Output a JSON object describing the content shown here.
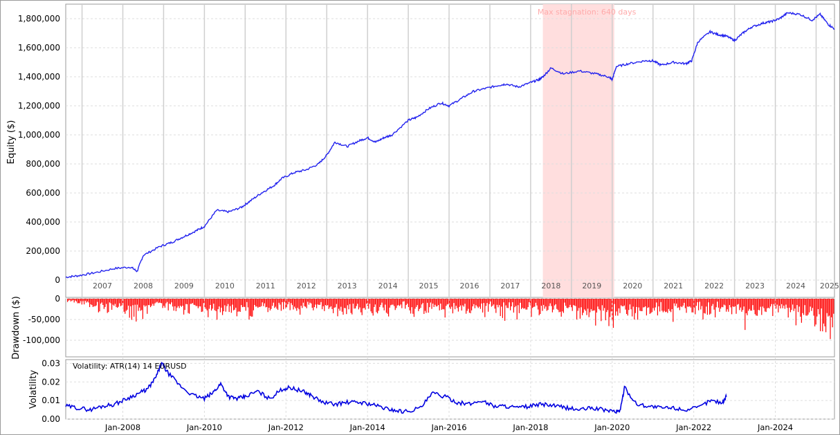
{
  "chart_data": [
    {
      "type": "line",
      "ylabel": "Equity ($)",
      "ylim": [
        0,
        1900000
      ],
      "yticks": [
        0,
        200000,
        400000,
        600000,
        800000,
        1000000,
        1200000,
        1400000,
        1600000,
        1800000
      ],
      "ytick_labels": [
        "0",
        "200,000",
        "400,000",
        "600,000",
        "800,000",
        "1,000,000",
        "1,200,000",
        "1,400,000",
        "1,600,000",
        "1,800,000"
      ],
      "xlim": [
        2006.6,
        2025.45
      ],
      "year_labels": [
        "2007",
        "2008",
        "2009",
        "2010",
        "2011",
        "2012",
        "2013",
        "2014",
        "2015",
        "2016",
        "2017",
        "2018",
        "2019",
        "2020",
        "2021",
        "2022",
        "2023",
        "2024",
        "2025"
      ],
      "grid": true,
      "stagnation": {
        "start": 2018.3,
        "end": 2020.05,
        "label": "Max stagnation: 640 days",
        "color": "#ffdede"
      },
      "series": [
        {
          "color": "#2222ee",
          "x": [
            2006.6,
            2006.9,
            2007.3,
            2007.8,
            2008.2,
            2008.35,
            2008.5,
            2008.9,
            2009.2,
            2009.5,
            2009.8,
            2010.0,
            2010.3,
            2010.6,
            2010.9,
            2011.1,
            2011.4,
            2011.7,
            2011.9,
            2012.2,
            2012.5,
            2012.8,
            2013.0,
            2013.2,
            2013.5,
            2013.8,
            2014.0,
            2014.2,
            2014.4,
            2014.6,
            2015.0,
            2015.2,
            2015.5,
            2015.8,
            2016.0,
            2016.3,
            2016.6,
            2016.9,
            2017.2,
            2017.4,
            2017.7,
            2018.0,
            2018.2,
            2018.3,
            2018.5,
            2018.8,
            2019.2,
            2019.6,
            2019.9,
            2020.0,
            2020.1,
            2020.4,
            2020.8,
            2021.0,
            2021.2,
            2021.5,
            2021.8,
            2021.95,
            2022.1,
            2022.4,
            2022.6,
            2022.8,
            2023.0,
            2023.2,
            2023.4,
            2023.7,
            2023.9,
            2024.1,
            2024.3,
            2024.6,
            2024.9,
            2025.1,
            2025.3,
            2025.45
          ],
          "y": [
            20000,
            30000,
            50000,
            80000,
            90000,
            60000,
            170000,
            230000,
            260000,
            300000,
            340000,
            370000,
            480000,
            470000,
            500000,
            540000,
            600000,
            650000,
            700000,
            740000,
            760000,
            800000,
            860000,
            950000,
            920000,
            960000,
            980000,
            950000,
            980000,
            1000000,
            1100000,
            1120000,
            1180000,
            1220000,
            1200000,
            1250000,
            1300000,
            1320000,
            1340000,
            1350000,
            1330000,
            1360000,
            1380000,
            1400000,
            1460000,
            1420000,
            1440000,
            1420000,
            1400000,
            1380000,
            1470000,
            1490000,
            1510000,
            1510000,
            1480000,
            1500000,
            1490000,
            1510000,
            1640000,
            1710000,
            1690000,
            1680000,
            1650000,
            1700000,
            1740000,
            1770000,
            1780000,
            1800000,
            1840000,
            1830000,
            1790000,
            1830000,
            1760000,
            1730000
          ]
        }
      ]
    },
    {
      "type": "bar",
      "ylabel": "Drawdown ($)",
      "ylim": [
        -140000,
        0
      ],
      "yticks": [
        0,
        -50000,
        -100000
      ],
      "ytick_labels": [
        "0",
        "-50,000",
        "-100,000"
      ],
      "xlim": [
        2006.6,
        2025.45
      ],
      "grid": true,
      "series": [
        {
          "color": "#ff0000",
          "x": [
            2006.7,
            2007.0,
            2007.3,
            2007.6,
            2007.9,
            2008.2,
            2008.4,
            2008.7,
            2009.0,
            2009.3,
            2009.6,
            2009.9,
            2010.2,
            2010.5,
            2010.8,
            2011.1,
            2011.4,
            2011.7,
            2012.0,
            2012.3,
            2012.6,
            2012.9,
            2013.2,
            2013.4,
            2013.7,
            2014.0,
            2014.3,
            2014.6,
            2014.9,
            2015.2,
            2015.5,
            2015.8,
            2016.1,
            2016.4,
            2016.7,
            2017.0,
            2017.3,
            2017.6,
            2017.9,
            2018.2,
            2018.5,
            2018.8,
            2019.1,
            2019.4,
            2019.7,
            2019.95,
            2020.2,
            2020.5,
            2020.8,
            2021.1,
            2021.4,
            2021.7,
            2022.0,
            2022.3,
            2022.6,
            2022.9,
            2023.2,
            2023.5,
            2023.8,
            2024.1,
            2024.4,
            2024.7,
            2025.0,
            2025.2,
            2025.4
          ],
          "values": [
            -10000,
            -20000,
            -30000,
            -40000,
            -50000,
            -65000,
            -55000,
            -30000,
            -25000,
            -40000,
            -35000,
            -45000,
            -55000,
            -40000,
            -40000,
            -50000,
            -40000,
            -35000,
            -30000,
            -45000,
            -35000,
            -30000,
            -50000,
            -60000,
            -40000,
            -45000,
            -55000,
            -35000,
            -30000,
            -45000,
            -40000,
            -50000,
            -35000,
            -40000,
            -30000,
            -40000,
            -45000,
            -55000,
            -50000,
            -40000,
            -50000,
            -45000,
            -55000,
            -60000,
            -70000,
            -90000,
            -40000,
            -55000,
            -50000,
            -40000,
            -55000,
            -45000,
            -40000,
            -50000,
            -45000,
            -40000,
            -70000,
            -55000,
            -45000,
            -40000,
            -55000,
            -60000,
            -90000,
            -110000,
            -130000
          ]
        }
      ]
    },
    {
      "type": "line",
      "ylabel": "Volatility",
      "title": "Volatility: ATR(14) 14 EURUSD",
      "ylim": [
        0,
        0.032
      ],
      "yticks": [
        0,
        0.01,
        0.02,
        0.03
      ],
      "ytick_labels": [
        "0.00",
        "0.01",
        "0.02",
        "0.03"
      ],
      "xlim": [
        2006.6,
        2025.45
      ],
      "x_labels": [
        "Jan-2008",
        "Jan-2010",
        "Jan-2012",
        "Jan-2014",
        "Jan-2016",
        "Jan-2018",
        "Jan-2020",
        "Jan-2022",
        "Jan-2024"
      ],
      "x_label_positions": [
        2008,
        2010,
        2012,
        2014,
        2016,
        2018,
        2020,
        2022,
        2024
      ],
      "grid": true,
      "series": [
        {
          "color": "#0000e0",
          "x": [
            2006.6,
            2006.9,
            2007.2,
            2007.5,
            2007.8,
            2008.1,
            2008.4,
            2008.6,
            2008.8,
            2008.95,
            2009.1,
            2009.4,
            2009.7,
            2010.0,
            2010.2,
            2010.4,
            2010.6,
            2010.8,
            2011.0,
            2011.3,
            2011.6,
            2011.9,
            2012.1,
            2012.4,
            2012.6,
            2012.9,
            2013.2,
            2013.5,
            2013.8,
            2014.1,
            2014.4,
            2014.6,
            2014.9,
            2015.3,
            2015.6,
            2015.9,
            2016.2,
            2016.5,
            2016.8,
            2017.1,
            2017.4,
            2017.7,
            2018.0,
            2018.3,
            2018.6,
            2018.9,
            2019.2,
            2019.5,
            2019.8,
            2020.1,
            2020.2,
            2020.3,
            2020.6,
            2020.9,
            2021.2,
            2021.5,
            2021.8,
            2022.1,
            2022.4,
            2022.7,
            2022.8
          ],
          "y": [
            0.007,
            0.006,
            0.005,
            0.007,
            0.008,
            0.011,
            0.014,
            0.016,
            0.022,
            0.03,
            0.025,
            0.018,
            0.013,
            0.011,
            0.014,
            0.019,
            0.012,
            0.011,
            0.012,
            0.015,
            0.011,
            0.016,
            0.017,
            0.015,
            0.013,
            0.009,
            0.008,
            0.009,
            0.009,
            0.008,
            0.006,
            0.005,
            0.004,
            0.006,
            0.014,
            0.012,
            0.009,
            0.008,
            0.01,
            0.007,
            0.007,
            0.006,
            0.007,
            0.008,
            0.007,
            0.006,
            0.005,
            0.006,
            0.005,
            0.004,
            0.005,
            0.017,
            0.008,
            0.007,
            0.006,
            0.006,
            0.005,
            0.006,
            0.01,
            0.009,
            0.012
          ]
        }
      ]
    }
  ]
}
